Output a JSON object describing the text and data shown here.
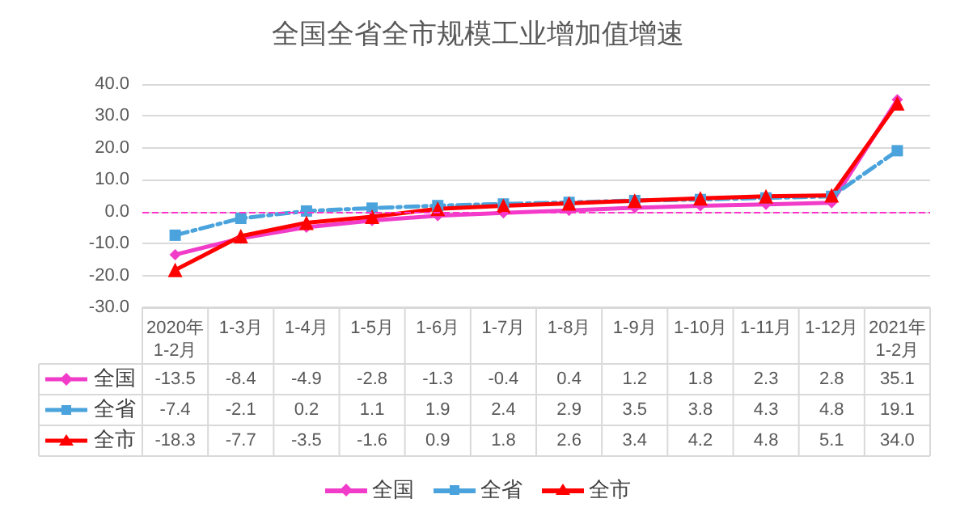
{
  "chart_data": {
    "type": "line",
    "title": "全国全省全市规模工业增加值增速",
    "categories": [
      "2020年\n1-2月",
      "1-3月",
      "1-4月",
      "1-5月",
      "1-6月",
      "1-7月",
      "1-8月",
      "1-9月",
      "1-10月",
      "1-11月",
      "1-12月",
      "2021年\n1-2月"
    ],
    "series": [
      {
        "name": "全国",
        "color": "#f03cc8",
        "marker": "diamond",
        "line_style": "solid",
        "values": [
          -13.5,
          -8.4,
          -4.9,
          -2.8,
          -1.3,
          -0.4,
          0.4,
          1.2,
          1.8,
          2.3,
          2.8,
          35.1
        ],
        "value_labels": [
          "-13.5",
          "-8.4",
          "-4.9",
          "-2.8",
          "-1.3",
          "-0.4",
          "0.4",
          "1.2",
          "1.8",
          "2.3",
          "2.8",
          "35.1"
        ]
      },
      {
        "name": "全省",
        "color": "#4aa3dc",
        "marker": "square",
        "line_style": "dashed",
        "values": [
          -7.4,
          -2.1,
          0.2,
          1.1,
          1.9,
          2.4,
          2.9,
          3.5,
          3.8,
          4.3,
          4.8,
          19.1
        ],
        "value_labels": [
          "-7.4",
          "-2.1",
          "0.2",
          "1.1",
          "1.9",
          "2.4",
          "2.9",
          "3.5",
          "3.8",
          "4.3",
          "4.8",
          "19.1"
        ]
      },
      {
        "name": "全市",
        "color": "#ff0000",
        "marker": "triangle",
        "line_style": "solid",
        "values": [
          -18.3,
          -7.7,
          -3.5,
          -1.6,
          0.9,
          1.8,
          2.6,
          3.4,
          4.2,
          4.8,
          5.1,
          34.0
        ],
        "value_labels": [
          "-18.3",
          "-7.7",
          "-3.5",
          "-1.6",
          "0.9",
          "1.8",
          "2.6",
          "3.4",
          "4.2",
          "4.8",
          "5.1",
          "34.0"
        ]
      }
    ],
    "ylim": [
      -30,
      40
    ],
    "yticks": [
      {
        "value": -30,
        "label": "-30.0"
      },
      {
        "value": -20,
        "label": "-20.0"
      },
      {
        "value": -10,
        "label": "-10.0"
      },
      {
        "value": 0,
        "label": "0.0"
      },
      {
        "value": 10,
        "label": "10.0"
      },
      {
        "value": 20,
        "label": "20.0"
      },
      {
        "value": 30,
        "label": "30.0"
      },
      {
        "value": 40,
        "label": "40.0"
      }
    ],
    "ref_lines": [
      {
        "axis": "y",
        "value": 0,
        "color": "#ff33cc",
        "line_style": "dashed"
      }
    ],
    "grid": "y",
    "legend": "bottom"
  }
}
